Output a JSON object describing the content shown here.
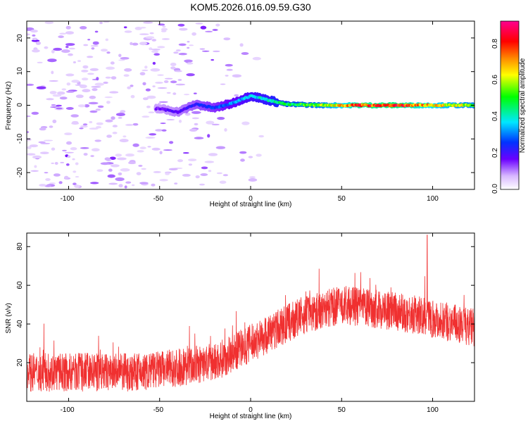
{
  "title": "KOM5.2026.016.09.59.G30",
  "top_panel": {
    "xlabel": "Height of straight line (km)",
    "ylabel": "Frequency (Hz)",
    "x_ticks": [
      "-100",
      "-50",
      "0",
      "50",
      "100"
    ],
    "y_ticks": [
      "20",
      "10",
      "0",
      "-10",
      "-20"
    ]
  },
  "colorbar": {
    "label": "Normalized spectral amplitude",
    "ticks": [
      "0.0",
      "0.2",
      "0.4",
      "0.6",
      "0.8"
    ]
  },
  "bottom_panel": {
    "xlabel": "Height of straight line (km)",
    "ylabel": "SNR (v/v)",
    "x_ticks": [
      "-100",
      "-50",
      "0",
      "50",
      "100"
    ],
    "y_ticks": [
      "20",
      "40",
      "60",
      "80"
    ]
  },
  "chart_data": [
    {
      "type": "heatmap",
      "title": "KOM5.2026.016.09.59.G30",
      "xlabel": "Height of straight line (km)",
      "ylabel": "Frequency (Hz)",
      "xlim": [
        -123,
        123
      ],
      "ylim": [
        -25,
        25
      ],
      "colorbar": {
        "label": "Normalized spectral amplitude",
        "range": [
          0,
          0.9
        ]
      },
      "ridge": [
        {
          "x": -50,
          "f": -1.0,
          "a": 0.15
        },
        {
          "x": -40,
          "f": -2.0,
          "a": 0.18
        },
        {
          "x": -30,
          "f": 0.3,
          "a": 0.22
        },
        {
          "x": -20,
          "f": -0.8,
          "a": 0.25
        },
        {
          "x": -10,
          "f": 0.6,
          "a": 0.3
        },
        {
          "x": 0,
          "f": 2.8,
          "a": 0.35
        },
        {
          "x": 10,
          "f": 1.5,
          "a": 0.38
        },
        {
          "x": 20,
          "f": 0.3,
          "a": 0.45
        },
        {
          "x": 40,
          "f": 0.0,
          "a": 0.55
        },
        {
          "x": 60,
          "f": 0.0,
          "a": 0.75
        },
        {
          "x": 80,
          "f": 0.0,
          "a": 0.78
        },
        {
          "x": 100,
          "f": 0.0,
          "a": 0.65
        },
        {
          "x": 120,
          "f": 0.0,
          "a": 0.55
        }
      ]
    },
    {
      "type": "line",
      "xlabel": "Height of straight line (km)",
      "ylabel": "SNR (v/v)",
      "xlim": [
        -123,
        123
      ],
      "ylim": [
        0,
        87
      ],
      "color": "#f03030",
      "trend": [
        {
          "x": -123,
          "y": 15
        },
        {
          "x": -60,
          "y": 15
        },
        {
          "x": -20,
          "y": 20
        },
        {
          "x": 0,
          "y": 30
        },
        {
          "x": 30,
          "y": 45
        },
        {
          "x": 50,
          "y": 50
        },
        {
          "x": 90,
          "y": 45
        },
        {
          "x": 123,
          "y": 38
        }
      ],
      "noise_amplitude": 10,
      "peak": {
        "x": 97,
        "y": 86
      }
    }
  ]
}
